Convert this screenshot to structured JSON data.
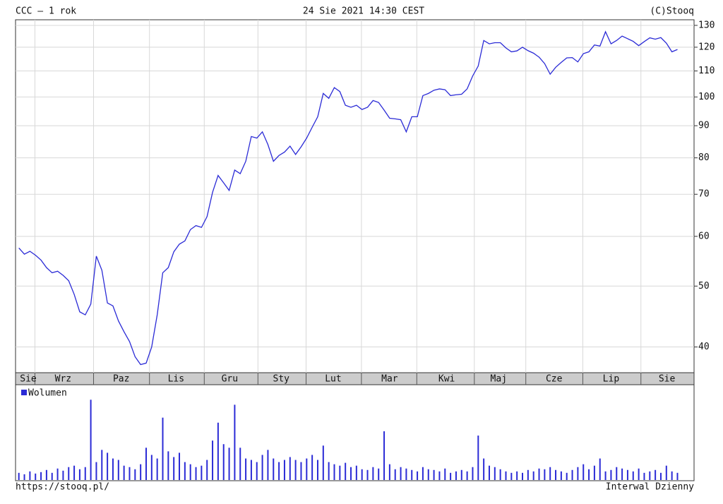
{
  "header": {
    "left": "CCC – 1 rok",
    "center": "24 Sie 2021 14:30 CEST",
    "right": "(C)Stooq"
  },
  "footer": {
    "left": "https://stooq.pl/",
    "right": "Interwal Dzienny"
  },
  "chart_data": [
    {
      "type": "line",
      "log_scale": true,
      "grid": true,
      "series": [
        {
          "name": "CCC",
          "color": "#2b2bd6",
          "values": [
            57.5,
            56.2,
            56.8,
            56,
            55,
            53.5,
            52.5,
            52.8,
            52,
            51,
            48.5,
            45.5,
            45,
            46.8,
            55.8,
            53,
            47,
            46.5,
            44,
            42.3,
            40.8,
            38.6,
            37.5,
            37.7,
            40,
            45,
            52.5,
            53.5,
            56.7,
            58.3,
            59,
            61.5,
            62.4,
            62,
            64.5,
            70.5,
            75,
            73,
            71,
            76.5,
            75.5,
            79,
            86.5,
            86,
            88,
            84,
            79,
            80.7,
            81.7,
            83.5,
            81,
            83.3,
            86,
            89.5,
            93,
            101.3,
            99.5,
            103.5,
            102,
            97,
            96.3,
            97,
            95.5,
            96.3,
            98.7,
            98,
            95.3,
            92.5,
            92.3,
            92,
            88,
            93,
            93,
            100.5,
            101.3,
            102.5,
            103,
            102.7,
            100.5,
            100.8,
            101,
            103,
            108,
            112,
            123,
            121.5,
            122,
            122,
            119.7,
            118,
            118.4,
            120,
            118.5,
            117.4,
            115.7,
            113,
            108.7,
            111.5,
            113.5,
            115.4,
            115.5,
            113.7,
            117.2,
            118,
            121,
            120.5,
            127,
            121.5,
            123,
            125,
            123.8,
            122.6,
            120.7,
            122.5,
            124.2,
            123.6,
            124.3,
            121.8,
            118,
            119
          ]
        }
      ],
      "xlim": [
        -0.6,
        122
      ],
      "xgrid": [
        2.9,
        13.5,
        23.6,
        33.5,
        43.2,
        51.9,
        61.9,
        71.9,
        82.3,
        91.6,
        101.9,
        112.4
      ],
      "xticks": [
        {
          "value": 1.7,
          "label": "Sie"
        },
        {
          "value": 8,
          "label": "Wrz"
        },
        {
          "value": 18.5,
          "label": "Paz"
        },
        {
          "value": 28.4,
          "label": "Lis"
        },
        {
          "value": 38.1,
          "label": "Gru"
        },
        {
          "value": 47.4,
          "label": "Sty"
        },
        {
          "value": 56.8,
          "label": "Lut"
        },
        {
          "value": 67,
          "label": "Mar"
        },
        {
          "value": 77.3,
          "label": "Kwi"
        },
        {
          "value": 86.7,
          "label": "Maj"
        },
        {
          "value": 96.7,
          "label": "Cze"
        },
        {
          "value": 107,
          "label": "Lip"
        },
        {
          "value": 117.1,
          "label": "Sie"
        }
      ],
      "ylim": [
        36.4,
        132.7
      ],
      "yticks": [
        40,
        50,
        60,
        70,
        80,
        90,
        100,
        110,
        120,
        130
      ]
    },
    {
      "type": "bar",
      "legend": "top-left",
      "series": [
        {
          "name": "Wolumen",
          "color": "#2b2bd6",
          "values": [
            10,
            8,
            12,
            9,
            11,
            14,
            10,
            16,
            13,
            18,
            20,
            15,
            18,
            112,
            25,
            42,
            38,
            30,
            28,
            20,
            18,
            15,
            22,
            45,
            35,
            30,
            87,
            40,
            32,
            38,
            25,
            22,
            18,
            20,
            28,
            55,
            80,
            50,
            45,
            105,
            45,
            30,
            28,
            25,
            35,
            42,
            30,
            25,
            28,
            32,
            28,
            25,
            30,
            35,
            28,
            48,
            25,
            22,
            20,
            24,
            18,
            20,
            15,
            14,
            18,
            16,
            68,
            22,
            15,
            18,
            16,
            14,
            12,
            18,
            15,
            14,
            12,
            16,
            10,
            12,
            14,
            12,
            18,
            62,
            30,
            20,
            18,
            15,
            12,
            10,
            12,
            10,
            14,
            12,
            16,
            15,
            18,
            14,
            12,
            10,
            14,
            18,
            22,
            15,
            20,
            30,
            12,
            14,
            18,
            16,
            14,
            12,
            16,
            10,
            12,
            14,
            10,
            20,
            12,
            10
          ]
        }
      ],
      "xlim": [
        -0.6,
        122
      ],
      "ylim": [
        0,
        130
      ]
    }
  ]
}
